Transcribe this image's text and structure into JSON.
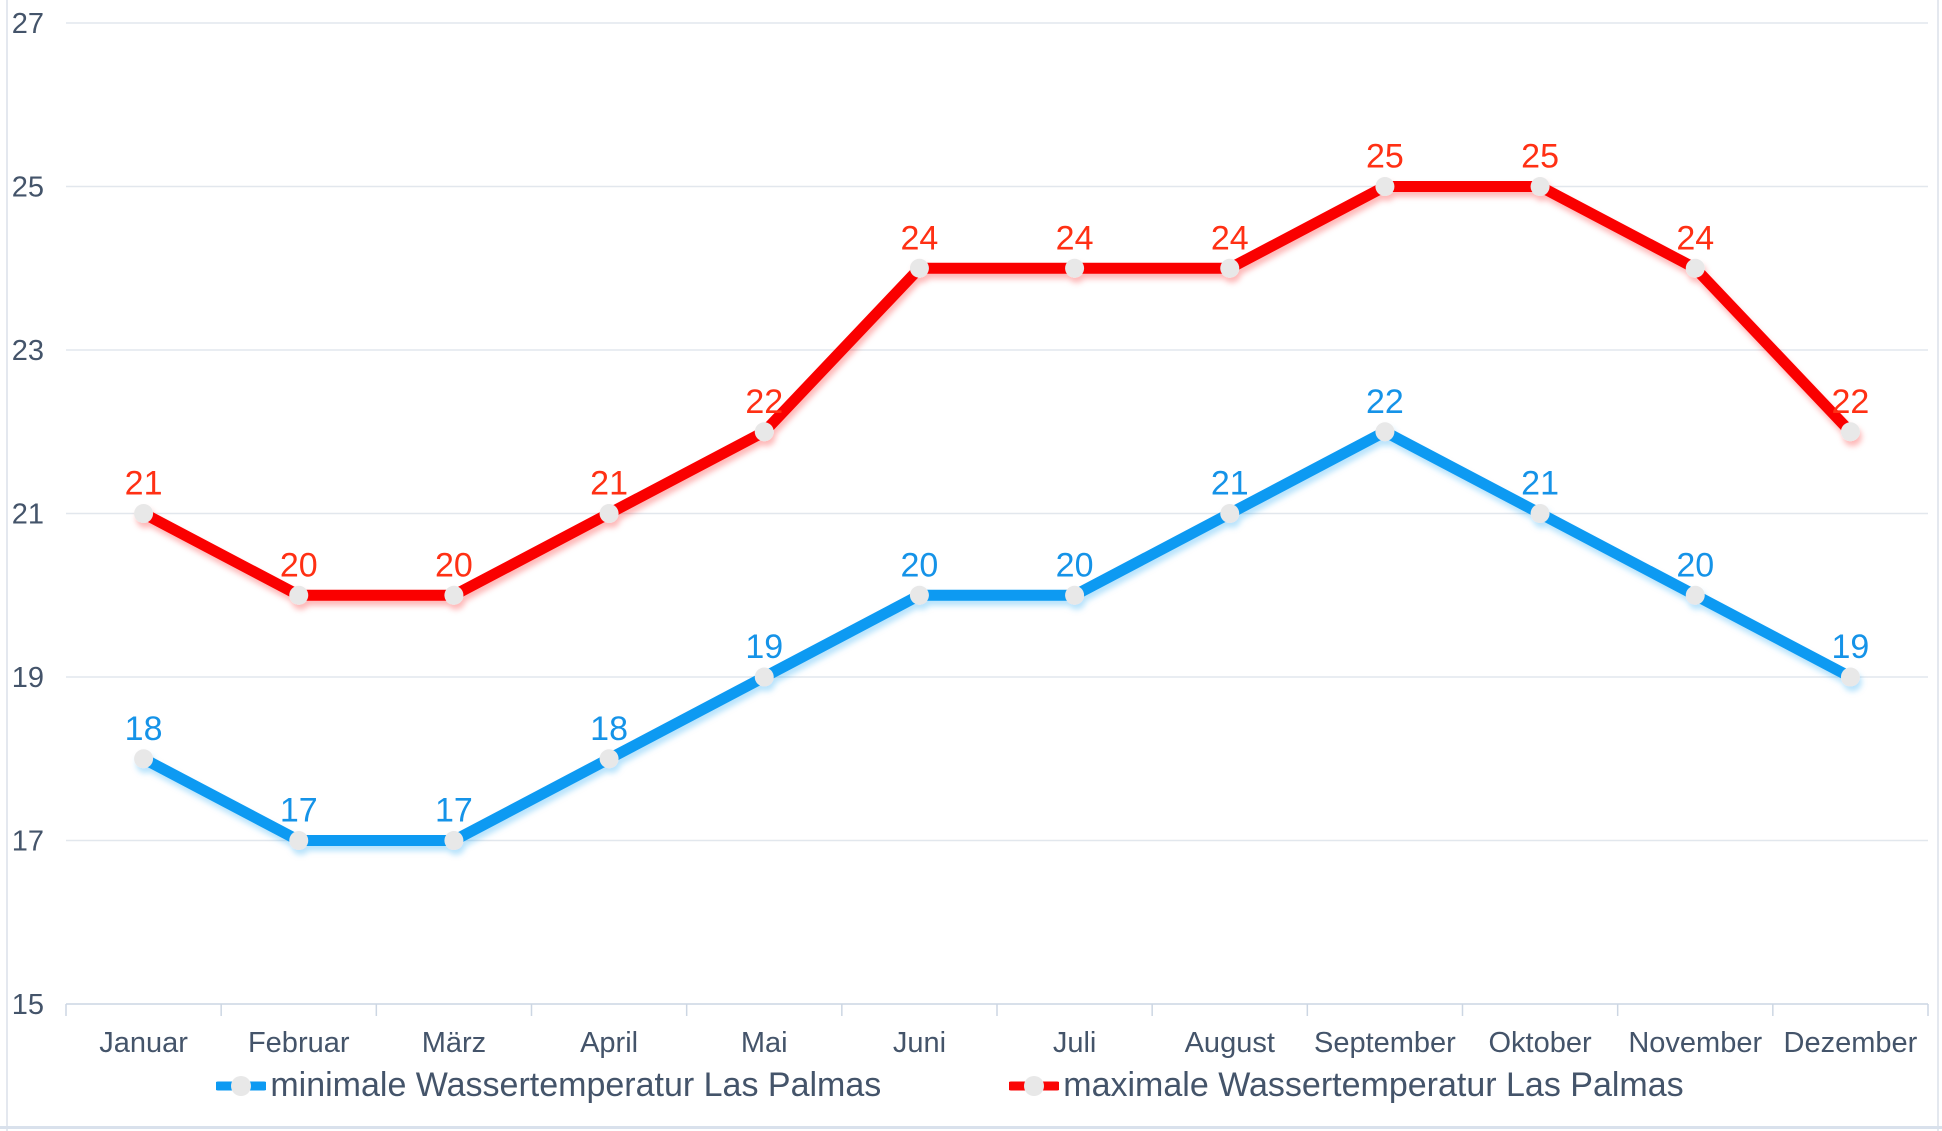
{
  "chart_data": {
    "type": "line",
    "categories": [
      "Januar",
      "Februar",
      "März",
      "April",
      "Mai",
      "Juni",
      "Juli",
      "August",
      "September",
      "Oktober",
      "November",
      "Dezember"
    ],
    "series": [
      {
        "name": "minimale Wassertemperatur Las Palmas",
        "values": [
          18,
          17,
          17,
          18,
          19,
          20,
          20,
          21,
          22,
          21,
          20,
          19
        ],
        "color": "#0d9af2",
        "label_color": "#1593e8"
      },
      {
        "name": "maximale Wassertemperatur Las Palmas",
        "values": [
          21,
          20,
          20,
          21,
          22,
          24,
          24,
          24,
          25,
          25,
          24,
          22
        ],
        "color": "#fa0505",
        "label_color": "#ff3014"
      }
    ],
    "title": "",
    "xlabel": "",
    "ylabel": "",
    "ylim": [
      15,
      27
    ],
    "yticks": [
      15,
      17,
      19,
      21,
      23,
      25,
      27
    ],
    "grid": true,
    "legend_position": "bottom",
    "data_labels": true,
    "marker_color": "#e8e8e8",
    "axis_text_color": "#44546a",
    "gridline_color": "#e2e7ed",
    "axis_line_color": "#ccd6e3"
  }
}
